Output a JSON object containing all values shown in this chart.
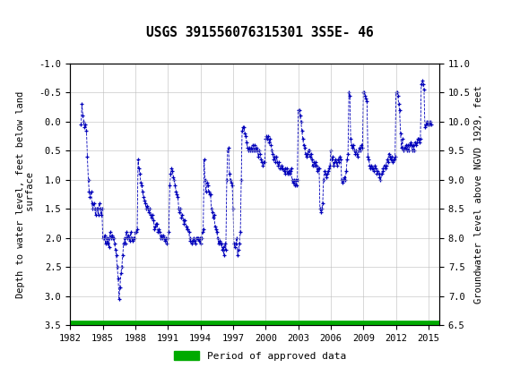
{
  "title": "USGS 391556076315301 3S5E- 46",
  "title_fontsize": 11,
  "ylabel_left": "Depth to water level, feet below land\n surface",
  "ylabel_right": "Groundwater level above NGVD 1929, feet",
  "ylim_left": [
    -1.0,
    3.5
  ],
  "ylim_right": [
    11.0,
    6.5
  ],
  "yticks_left": [
    -1.0,
    -0.5,
    0.0,
    0.5,
    1.0,
    1.5,
    2.0,
    2.5,
    3.0,
    3.5
  ],
  "yticks_right": [
    11.0,
    10.5,
    10.0,
    9.5,
    9.0,
    8.5,
    8.0,
    7.5,
    7.0,
    6.5
  ],
  "ytick_labels_right": [
    "11.0",
    "10.5",
    "10.0",
    "9.5",
    "9.0",
    "8.5",
    "8.0",
    "7.5",
    "7.0",
    "6.5"
  ],
  "xlim": [
    1982,
    2016
  ],
  "xticks": [
    1982,
    1985,
    1988,
    1991,
    1994,
    1997,
    2000,
    2003,
    2006,
    2009,
    2012,
    2015
  ],
  "header_color": "#1a7a3a",
  "plot_bg_color": "#ffffff",
  "outer_bg_color": "#ffffff",
  "grid_color": "#bbbbbb",
  "line_color": "#0000bb",
  "marker_color": "#0000bb",
  "green_bar_color": "#00aa00",
  "legend_label": "Period of approved data",
  "font_family": "monospace",
  "approved_bar_y": 3.5,
  "approved_bar_linewidth": 7
}
